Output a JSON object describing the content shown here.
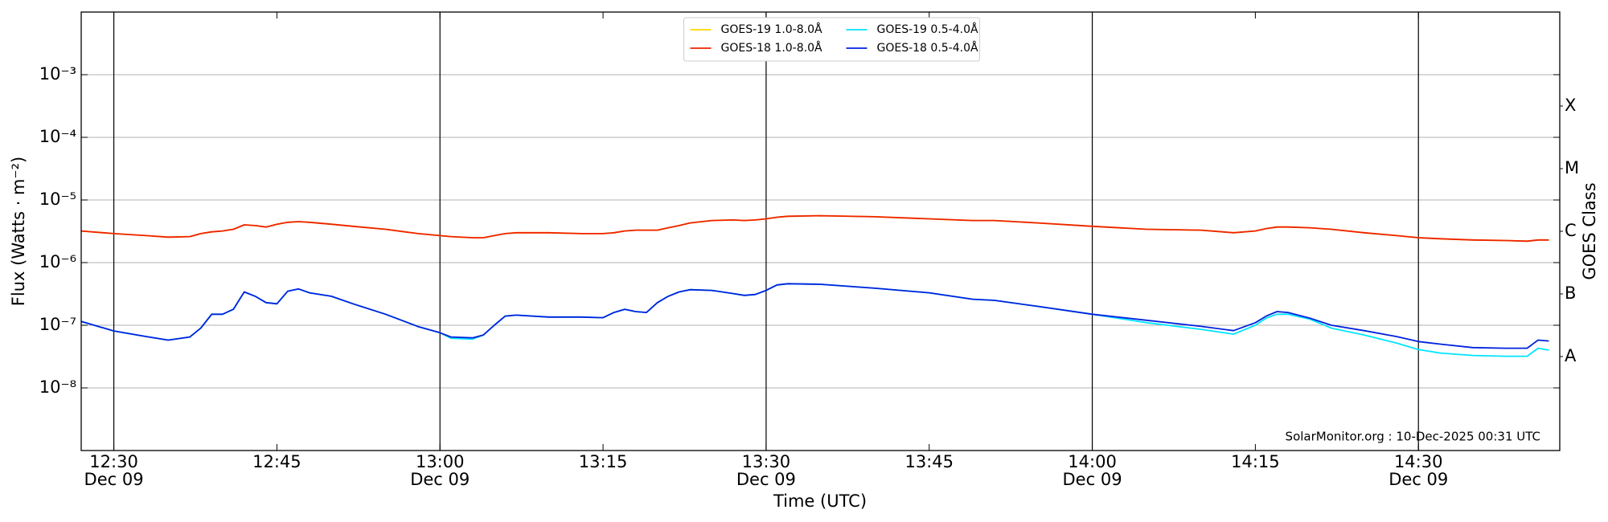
{
  "chart_data": {
    "type": "line",
    "xlabel": "Time (UTC)",
    "ylabel": "Flux (Watts · m⁻²)",
    "y2label": "GOES Class",
    "annotation": "SolarMonitor.org : 10-Dec-2025 00:31 UTC",
    "log_y": true,
    "grid": true,
    "legend": "upper center",
    "xlim": [
      "12:27",
      "14:43"
    ],
    "xticks": [
      {
        "value": "12:30",
        "label": [
          "12:30",
          "Dec 09"
        ]
      },
      "12:45",
      {
        "value": "13:00",
        "label": [
          "13:00",
          "Dec 09"
        ]
      },
      "13:15",
      {
        "value": "13:30",
        "label": [
          "13:30",
          "Dec 09"
        ]
      },
      "13:45",
      {
        "value": "14:00",
        "label": [
          "14:00",
          "Dec 09"
        ]
      },
      "14:15",
      {
        "value": "14:30",
        "label": [
          "14:30",
          "Dec 09"
        ]
      }
    ],
    "ylim": [
      1e-09,
      0.01
    ],
    "yticks": [
      {
        "value": 1e-08,
        "label": "10⁻⁸"
      },
      {
        "value": 1e-07,
        "label": "10⁻⁷"
      },
      {
        "value": 1e-06,
        "label": "10⁻⁶"
      },
      {
        "value": 1e-05,
        "label": "10⁻⁵"
      },
      {
        "value": 0.0001,
        "label": "10⁻⁴"
      },
      {
        "value": 0.001,
        "label": "10⁻³"
      }
    ],
    "y2lim": [
      1e-09,
      0.01
    ],
    "y2ticks": [
      {
        "value": 3.162e-08,
        "label": "A"
      },
      {
        "value": 3.162e-07,
        "label": "B"
      },
      {
        "value": 3.162e-06,
        "label": "C"
      },
      {
        "value": 3.162e-05,
        "label": "M"
      },
      {
        "value": 0.0003162,
        "label": "X"
      }
    ],
    "x": [
      "12:27",
      "12:30",
      "12:33",
      "12:35",
      "12:37",
      "12:38",
      "12:39",
      "12:40",
      "12:41",
      "12:42",
      "12:43",
      "12:44",
      "12:45",
      "12:46",
      "12:47",
      "12:48",
      "12:50",
      "12:52",
      "12:55",
      "12:58",
      "13:00",
      "13:01",
      "13:03",
      "13:04",
      "13:05",
      "13:06",
      "13:07",
      "13:10",
      "13:13",
      "13:15",
      "13:16",
      "13:17",
      "13:18",
      "13:19",
      "13:20",
      "13:21",
      "13:22",
      "13:23",
      "13:25",
      "13:27",
      "13:28",
      "13:29",
      "13:30",
      "13:31",
      "13:32",
      "13:35",
      "13:40",
      "13:45",
      "13:49",
      "13:51",
      "13:55",
      "14:00",
      "14:05",
      "14:10",
      "14:13",
      "14:15",
      "14:16",
      "14:17",
      "14:18",
      "14:20",
      "14:22",
      "14:25",
      "14:28",
      "14:30",
      "14:32",
      "14:35",
      "14:38",
      "14:40",
      "14:41",
      "14:42"
    ],
    "series": [
      {
        "name": "GOES-19 1.0-8.0Å",
        "color": "#ffd700",
        "values": [
          3.2e-06,
          2.9e-06,
          2.7e-06,
          2.55e-06,
          2.6e-06,
          2.9e-06,
          3.1e-06,
          3.2e-06,
          3.4e-06,
          4e-06,
          3.9e-06,
          3.7e-06,
          4.1e-06,
          4.4e-06,
          4.5e-06,
          4.4e-06,
          4.1e-06,
          3.8e-06,
          3.4e-06,
          2.9e-06,
          2.7e-06,
          2.6e-06,
          2.5e-06,
          2.5e-06,
          2.7e-06,
          2.9e-06,
          3e-06,
          3e-06,
          2.9e-06,
          2.9e-06,
          3e-06,
          3.2e-06,
          3.3e-06,
          3.3e-06,
          3.3e-06,
          3.6e-06,
          3.9e-06,
          4.3e-06,
          4.7e-06,
          4.8e-06,
          4.7e-06,
          4.8e-06,
          5e-06,
          5.3e-06,
          5.5e-06,
          5.6e-06,
          5.4e-06,
          5e-06,
          4.7e-06,
          4.7e-06,
          4.3e-06,
          3.8e-06,
          3.4e-06,
          3.3e-06,
          3e-06,
          3.2e-06,
          3.5e-06,
          3.7e-06,
          3.7e-06,
          3.6e-06,
          3.4e-06,
          3e-06,
          2.7e-06,
          2.5e-06,
          2.4e-06,
          2.3e-06,
          2.25e-06,
          2.2e-06,
          2.3e-06,
          2.3e-06
        ]
      },
      {
        "name": "GOES-18 1.0-8.0Å",
        "color": "#ee2200",
        "values": [
          3.2e-06,
          2.9e-06,
          2.7e-06,
          2.55e-06,
          2.6e-06,
          2.9e-06,
          3.1e-06,
          3.2e-06,
          3.4e-06,
          4e-06,
          3.9e-06,
          3.7e-06,
          4.1e-06,
          4.4e-06,
          4.5e-06,
          4.4e-06,
          4.1e-06,
          3.8e-06,
          3.4e-06,
          2.9e-06,
          2.7e-06,
          2.6e-06,
          2.5e-06,
          2.5e-06,
          2.7e-06,
          2.9e-06,
          3e-06,
          3e-06,
          2.9e-06,
          2.9e-06,
          3e-06,
          3.2e-06,
          3.3e-06,
          3.3e-06,
          3.3e-06,
          3.6e-06,
          3.9e-06,
          4.3e-06,
          4.7e-06,
          4.8e-06,
          4.7e-06,
          4.8e-06,
          5e-06,
          5.3e-06,
          5.5e-06,
          5.6e-06,
          5.4e-06,
          5e-06,
          4.7e-06,
          4.7e-06,
          4.3e-06,
          3.8e-06,
          3.4e-06,
          3.3e-06,
          3e-06,
          3.2e-06,
          3.5e-06,
          3.7e-06,
          3.7e-06,
          3.6e-06,
          3.4e-06,
          3e-06,
          2.7e-06,
          2.5e-06,
          2.4e-06,
          2.3e-06,
          2.25e-06,
          2.2e-06,
          2.3e-06,
          2.3e-06
        ]
      },
      {
        "name": "GOES-19 0.5-4.0Å",
        "color": "#00e5ff",
        "values": [
          1.15e-07,
          8.1e-08,
          6.6e-08,
          5.8e-08,
          6.5e-08,
          9e-08,
          1.5e-07,
          1.5e-07,
          1.8e-07,
          3.4e-07,
          2.9e-07,
          2.3e-07,
          2.2e-07,
          3.5e-07,
          3.8e-07,
          3.3e-07,
          2.9e-07,
          2.2e-07,
          1.5e-07,
          9.5e-08,
          7.6e-08,
          6.2e-08,
          6e-08,
          7e-08,
          1e-07,
          1.4e-07,
          1.45e-07,
          1.35e-07,
          1.35e-07,
          1.32e-07,
          1.6e-07,
          1.8e-07,
          1.65e-07,
          1.6e-07,
          2.3e-07,
          2.9e-07,
          3.4e-07,
          3.7e-07,
          3.6e-07,
          3.2e-07,
          3e-07,
          3.1e-07,
          3.6e-07,
          4.4e-07,
          4.6e-07,
          4.5e-07,
          3.9e-07,
          3.3e-07,
          2.6e-07,
          2.5e-07,
          2e-07,
          1.5e-07,
          1.1e-07,
          8.6e-08,
          7.2e-08,
          1e-07,
          1.3e-07,
          1.5e-07,
          1.5e-07,
          1.25e-07,
          9e-08,
          7e-08,
          5.2e-08,
          4.1e-08,
          3.6e-08,
          3.3e-08,
          3.2e-08,
          3.2e-08,
          4.3e-08,
          4e-08
        ]
      },
      {
        "name": "GOES-18 0.5-4.0Å",
        "color": "#0022dd",
        "values": [
          1.15e-07,
          8.1e-08,
          6.6e-08,
          5.8e-08,
          6.5e-08,
          9e-08,
          1.5e-07,
          1.5e-07,
          1.8e-07,
          3.4e-07,
          2.9e-07,
          2.3e-07,
          2.2e-07,
          3.5e-07,
          3.8e-07,
          3.3e-07,
          2.9e-07,
          2.2e-07,
          1.5e-07,
          9.5e-08,
          7.6e-08,
          6.5e-08,
          6.3e-08,
          7e-08,
          1e-07,
          1.4e-07,
          1.45e-07,
          1.35e-07,
          1.35e-07,
          1.32e-07,
          1.6e-07,
          1.8e-07,
          1.65e-07,
          1.6e-07,
          2.3e-07,
          2.9e-07,
          3.4e-07,
          3.7e-07,
          3.6e-07,
          3.2e-07,
          3e-07,
          3.1e-07,
          3.6e-07,
          4.4e-07,
          4.6e-07,
          4.5e-07,
          3.9e-07,
          3.3e-07,
          2.6e-07,
          2.5e-07,
          2e-07,
          1.5e-07,
          1.2e-07,
          9.6e-08,
          8.2e-08,
          1.1e-07,
          1.4e-07,
          1.65e-07,
          1.6e-07,
          1.3e-07,
          1e-07,
          8.2e-08,
          6.6e-08,
          5.5e-08,
          5e-08,
          4.4e-08,
          4.3e-08,
          4.3e-08,
          5.8e-08,
          5.6e-08
        ]
      }
    ]
  }
}
